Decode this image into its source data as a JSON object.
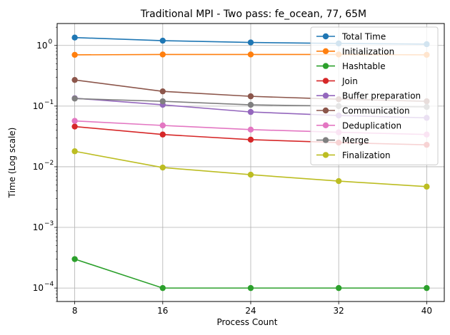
{
  "chart_data": {
    "type": "line",
    "title": "Traditional MPI - Two pass: fe_ocean, 77, 65M",
    "xlabel": "Process Count",
    "ylabel": "Time (Log scale)",
    "yscale": "log",
    "x": [
      8,
      16,
      24,
      32,
      40
    ],
    "x_tick_labels": [
      "8",
      "16",
      "24",
      "32",
      "40"
    ],
    "xlim": [
      6.4,
      41.6
    ],
    "ylim": [
      6e-05,
      2.3
    ],
    "y_ticks": [
      {
        "value": 1,
        "base": "10",
        "exp": "0"
      },
      {
        "value": 0.1,
        "base": "10",
        "exp": "−1"
      },
      {
        "value": 0.01,
        "base": "10",
        "exp": "−2"
      },
      {
        "value": 0.001,
        "base": "10",
        "exp": "−3"
      },
      {
        "value": 0.0001,
        "base": "10",
        "exp": "−4"
      }
    ],
    "grid": true,
    "legend_position": "top-right",
    "series": [
      {
        "name": "Total Time",
        "color": "#1f77b4",
        "values": [
          1.35,
          1.2,
          1.12,
          1.08,
          1.05
        ]
      },
      {
        "name": "Initialization",
        "color": "#ff7f0e",
        "values": [
          0.7,
          0.71,
          0.71,
          0.71,
          0.7
        ]
      },
      {
        "name": "Hashtable",
        "color": "#2ca02c",
        "values": [
          0.0003,
          0.0001,
          0.0001,
          0.0001,
          0.0001
        ]
      },
      {
        "name": "Join",
        "color": "#d62728",
        "values": [
          0.046,
          0.034,
          0.028,
          0.025,
          0.023
        ]
      },
      {
        "name": "Buffer preparation",
        "color": "#9467bd",
        "values": [
          0.135,
          0.105,
          0.08,
          0.07,
          0.064
        ]
      },
      {
        "name": "Communication",
        "color": "#8c564b",
        "values": [
          0.27,
          0.175,
          0.145,
          0.13,
          0.12
        ]
      },
      {
        "name": "Deduplication",
        "color": "#e377c2",
        "values": [
          0.057,
          0.048,
          0.041,
          0.037,
          0.034
        ]
      },
      {
        "name": "Merge",
        "color": "#7f7f7f",
        "values": [
          0.133,
          0.12,
          0.105,
          0.1,
          0.097
        ]
      },
      {
        "name": "Finalization",
        "color": "#bcbd22",
        "values": [
          0.018,
          0.0097,
          0.0074,
          0.0058,
          0.0047
        ]
      }
    ]
  }
}
